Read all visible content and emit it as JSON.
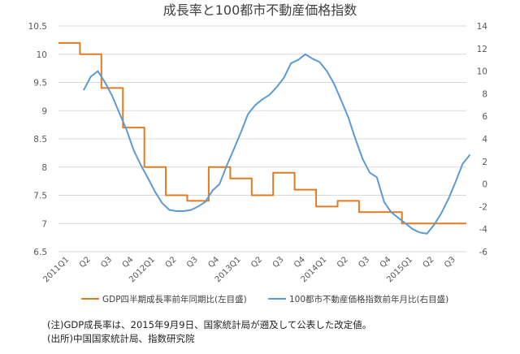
{
  "chart_data": {
    "type": "line",
    "title": "成長率と100都市不動産価格指数",
    "x_tick_labels": [
      "2011Q1",
      "Q2",
      "Q3",
      "Q4",
      "2012Q1",
      "Q2",
      "Q3",
      "Q4",
      "2013Q1",
      "Q2",
      "Q3",
      "Q4",
      "2014Q1",
      "Q2",
      "Q3",
      "Q4",
      "2015Q1",
      "Q2",
      "Q3"
    ],
    "left_axis": {
      "ylim": [
        6.5,
        10.5
      ],
      "ticks": [
        "6.5",
        "7",
        "7.5",
        "8",
        "8.5",
        "9",
        "9.5",
        "10",
        "10.5"
      ]
    },
    "right_axis": {
      "ylim": [
        -6,
        14
      ],
      "ticks": [
        "-6",
        "-4",
        "-2",
        "0",
        "2",
        "4",
        "6",
        "8",
        "10",
        "12",
        "14"
      ]
    },
    "grid": true,
    "legend_position": "bottom",
    "series": [
      {
        "name": "GDP四半期成長率前年同期比(左目盛)",
        "axis": "left",
        "color": "#E07B22",
        "style": "step",
        "x": [
          "2011Q1",
          "2011Q2",
          "2011Q3",
          "2011Q4",
          "2012Q1",
          "2012Q2",
          "2012Q3",
          "2012Q4",
          "2013Q1",
          "2013Q2",
          "2013Q3",
          "2013Q4",
          "2014Q1",
          "2014Q2",
          "2014Q3",
          "2014Q4",
          "2015Q1",
          "2015Q2",
          "2015Q3"
        ],
        "values": [
          10.2,
          10.0,
          9.4,
          8.7,
          8.0,
          7.5,
          7.4,
          8.0,
          7.8,
          7.5,
          7.9,
          7.6,
          7.3,
          7.4,
          7.2,
          7.2,
          7.0,
          7.0,
          7.0
        ]
      },
      {
        "name": "100都市不動産価格指数前年月比(右目盛)",
        "axis": "right",
        "color": "#5B9BD5",
        "style": "line",
        "x": [
          0.67,
          1.0,
          1.33,
          1.67,
          2.0,
          2.33,
          2.67,
          3.0,
          3.33,
          3.67,
          4.0,
          4.33,
          4.67,
          5.0,
          5.33,
          5.67,
          6.0,
          6.33,
          6.67,
          7.0,
          7.33,
          7.67,
          8.0,
          8.33,
          8.67,
          9.0,
          9.33,
          9.67,
          10.0,
          10.33,
          10.67,
          11.0,
          11.33,
          11.67,
          12.0,
          12.33,
          12.67,
          13.0,
          13.33,
          13.67,
          14.0,
          14.33,
          14.67,
          15.0,
          15.33,
          15.67,
          16.0,
          16.33,
          16.67,
          17.0,
          17.33,
          17.67,
          18.0,
          18.33,
          18.67
        ],
        "values": [
          8.3,
          9.5,
          10.0,
          9.0,
          7.8,
          6.3,
          4.8,
          3.0,
          1.7,
          0.5,
          -0.7,
          -1.7,
          -2.3,
          -2.4,
          -2.4,
          -2.3,
          -2.0,
          -1.6,
          -0.6,
          0.0,
          1.6,
          3.1,
          4.6,
          6.2,
          7.0,
          7.5,
          7.9,
          8.6,
          9.4,
          10.7,
          11.0,
          11.5,
          11.1,
          10.8,
          10.0,
          8.9,
          7.4,
          5.9,
          4.0,
          2.2,
          1.0,
          0.6,
          -1.6,
          -2.5,
          -3.0,
          -3.5,
          -4.0,
          -4.3,
          -4.4,
          -3.6,
          -2.6,
          -1.3,
          0.2,
          1.8,
          2.6
        ]
      }
    ]
  },
  "notes": {
    "line1": "(注)GDP成長率は、2015年9月9日、国家統計局が遡及して公表した改定値。",
    "line2": "(出所)中国国家統計局、指数研究院"
  },
  "colors": {
    "grid": "#D9D9D9",
    "axis_text": "#595959",
    "title": "#404040"
  }
}
